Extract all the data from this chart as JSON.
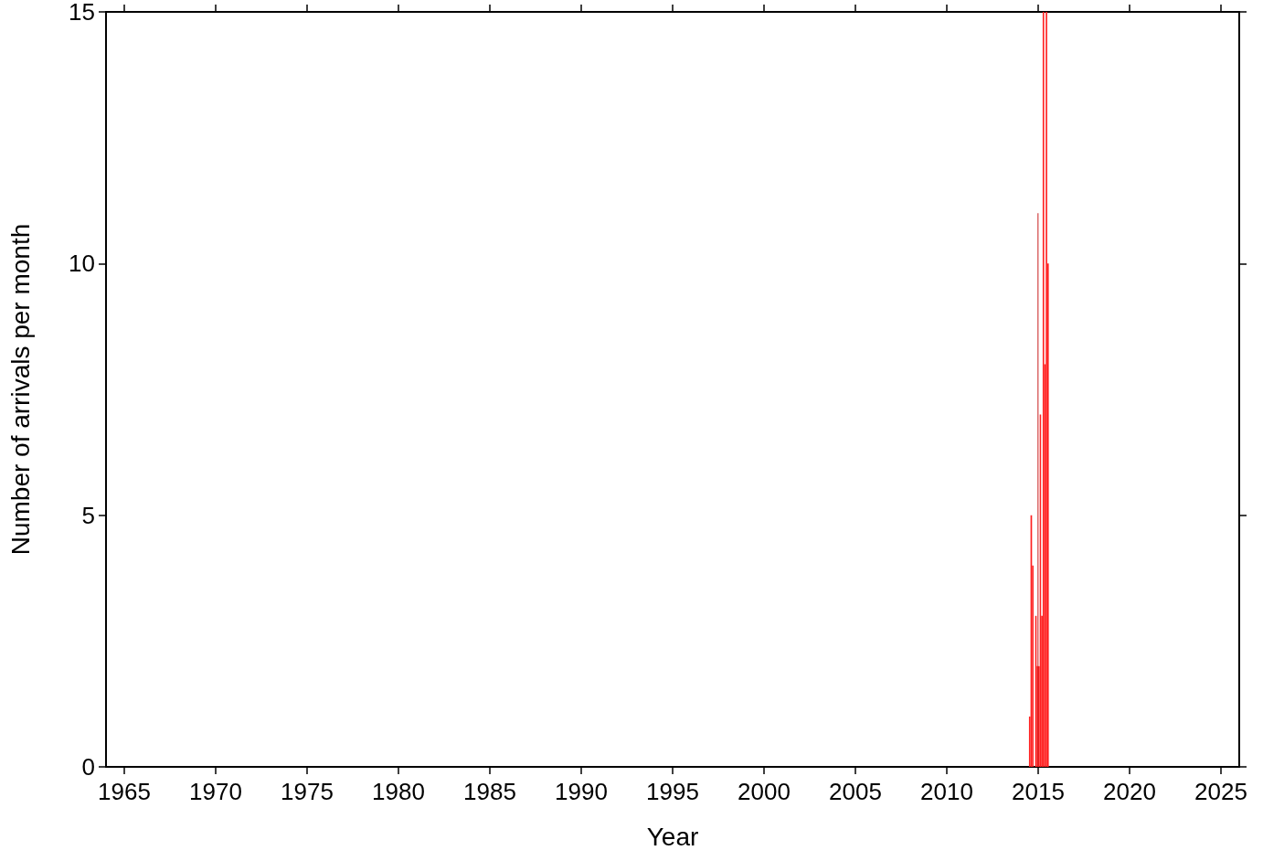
{
  "chart_data": {
    "type": "bar",
    "xlabel": "Year",
    "ylabel": "Number of arrivals per month",
    "xlim": [
      "1964",
      "2026"
    ],
    "xticks": [
      "1965",
      "1970",
      "1975",
      "1980",
      "1985",
      "1990",
      "1995",
      "2000",
      "2005",
      "2010",
      "2015",
      "2020",
      "2025"
    ],
    "ylim": [
      0,
      15
    ],
    "yticks": [
      0,
      5,
      10,
      15
    ],
    "grid": false,
    "legend": false,
    "series": [
      {
        "color": "#ff2020",
        "x": [
          "2014-07",
          "2014-08",
          "2014-09",
          "2014-10",
          "2014-11",
          "2014-12",
          "2015-01",
          "2015-02",
          "2015-03",
          "2015-04",
          "2015-05",
          "2015-06",
          "2015-07"
        ],
        "values": [
          1,
          5,
          4,
          0,
          3,
          2,
          2,
          7,
          3,
          15,
          8,
          15,
          10
        ]
      },
      {
        "color": "#c81e1e",
        "type": "bar",
        "x": [
          "2014-12-20"
        ],
        "values": [
          11
        ]
      }
    ]
  }
}
